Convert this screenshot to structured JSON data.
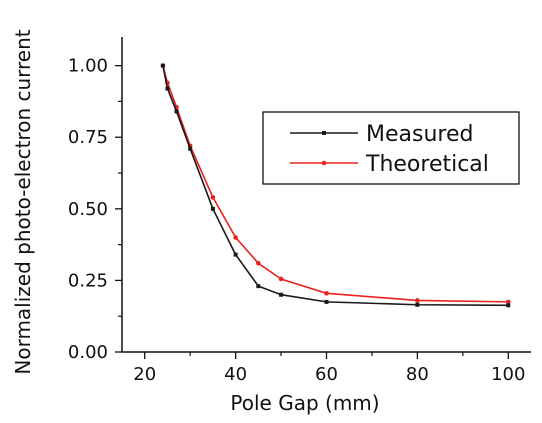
{
  "chart_data": {
    "type": "line",
    "title": "",
    "xlabel": "Pole Gap (mm)",
    "ylabel": "Normalized photo-electron current",
    "xlim": [
      15,
      105
    ],
    "ylim": [
      0.0,
      1.1
    ],
    "xticks": [
      20,
      40,
      60,
      80,
      100
    ],
    "xtick_labels": [
      "20",
      "40",
      "60",
      "80",
      "100"
    ],
    "yticks": [
      0.0,
      0.25,
      0.5,
      0.75,
      1.0
    ],
    "ytick_labels": [
      "0.00",
      "0.25",
      "0.50",
      "0.75",
      "1.00"
    ],
    "grid": false,
    "legend_position": "center-right",
    "series": [
      {
        "name": "Measured",
        "color": "#1a1a1a",
        "marker": "square",
        "x": [
          24,
          25,
          27,
          30,
          35,
          40,
          45,
          50,
          60,
          80,
          100
        ],
        "y": [
          1.0,
          0.92,
          0.84,
          0.71,
          0.5,
          0.34,
          0.23,
          0.2,
          0.175,
          0.165,
          0.163
        ]
      },
      {
        "name": "Theoretical",
        "color": "#e8231f",
        "marker": "circle",
        "x": [
          24,
          25,
          27,
          30,
          35,
          40,
          45,
          50,
          60,
          80,
          100
        ],
        "y": [
          1.0,
          0.94,
          0.855,
          0.72,
          0.54,
          0.4,
          0.31,
          0.255,
          0.205,
          0.18,
          0.175
        ]
      }
    ]
  }
}
